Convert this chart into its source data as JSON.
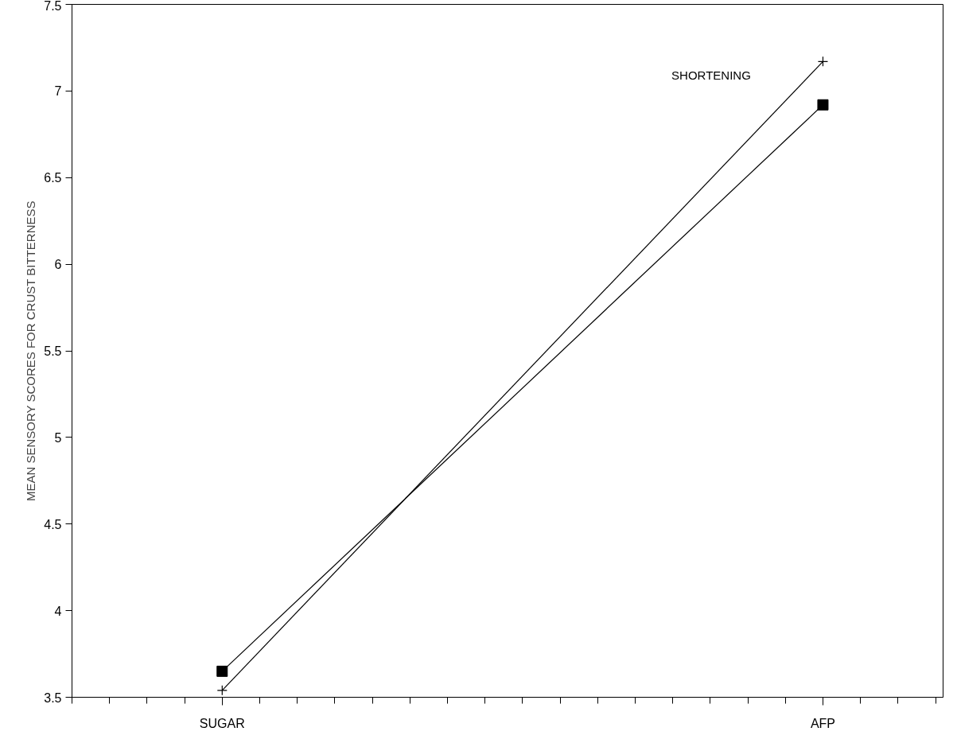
{
  "chart_data": {
    "type": "line",
    "ylabel": "MEAN SENSORY SCORES FOR CRUST BITTERNESS",
    "categories": [
      "SUGAR",
      "AFP"
    ],
    "series": [
      {
        "name": "SHORTENING",
        "color": "#000000",
        "marker": "cross",
        "values": [
          3.54,
          7.17
        ]
      },
      {
        "color": "#000000",
        "marker": "square",
        "values": [
          3.65,
          6.92
        ]
      }
    ],
    "ylim": [
      3.5,
      7.5
    ],
    "yticks": [
      3.5,
      4,
      4.5,
      5,
      5.5,
      6,
      6.5,
      7,
      7.5
    ],
    "grid": false,
    "legend": false,
    "line_style": "solid"
  }
}
